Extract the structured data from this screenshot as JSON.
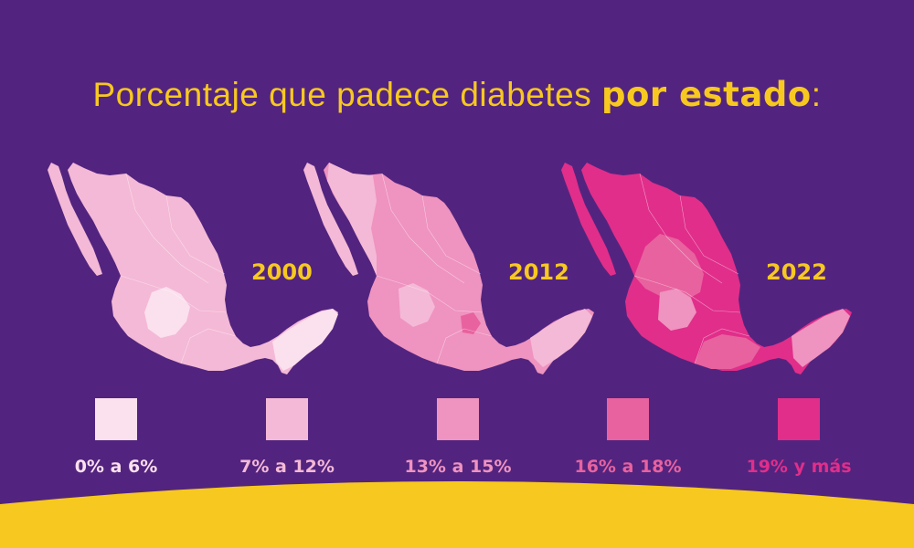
{
  "title": {
    "part1": "Porcentaje que padece diabetes ",
    "bold": "por estado",
    "colon": ":"
  },
  "maps": [
    {
      "year": "2000",
      "base_category": "7% a 12%",
      "highlight_category": "0% a 6%",
      "second_category": ""
    },
    {
      "year": "2012",
      "base_category": "13% a 15%",
      "highlight_category": "7% a 12%",
      "second_category": "16% a 18%"
    },
    {
      "year": "2022",
      "base_category": "19% y más",
      "highlight_category": "16% a 18%",
      "second_category": "13% a 15%"
    }
  ],
  "legend": [
    {
      "label": "0% a 6%",
      "color": "#fbe0ee"
    },
    {
      "label": "7% a 12%",
      "color": "#f4b9d6"
    },
    {
      "label": "13% a 15%",
      "color": "#ef93c0"
    },
    {
      "label": "16% a 18%",
      "color": "#e8629f"
    },
    {
      "label": "19% y más",
      "color": "#e12e8a"
    }
  ],
  "colors": {
    "background": "#52247f",
    "accent": "#f7c81f"
  }
}
